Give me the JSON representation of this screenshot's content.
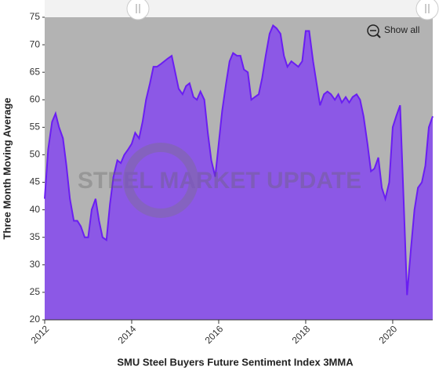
{
  "chart_data": {
    "type": "area",
    "title": "SMU Steel Buyers Future Sentiment Index 3MMA",
    "y_label": "Three Month Moving Average",
    "watermark": "STEEL MARKET UPDATE",
    "button": "Show all",
    "x": [
      2012.0,
      2012.08,
      2012.17,
      2012.25,
      2012.33,
      2012.42,
      2012.5,
      2012.58,
      2012.67,
      2012.75,
      2012.83,
      2012.92,
      2013.0,
      2013.08,
      2013.17,
      2013.25,
      2013.33,
      2013.42,
      2013.5,
      2013.58,
      2013.67,
      2013.75,
      2013.83,
      2013.92,
      2014.0,
      2014.08,
      2014.17,
      2014.25,
      2014.33,
      2014.42,
      2014.5,
      2014.58,
      2014.67,
      2014.75,
      2014.83,
      2014.92,
      2015.0,
      2015.08,
      2015.17,
      2015.25,
      2015.33,
      2015.42,
      2015.5,
      2015.58,
      2015.67,
      2015.75,
      2015.83,
      2015.92,
      2016.0,
      2016.08,
      2016.17,
      2016.25,
      2016.33,
      2016.42,
      2016.5,
      2016.58,
      2016.67,
      2016.75,
      2016.83,
      2016.92,
      2017.0,
      2017.08,
      2017.17,
      2017.25,
      2017.33,
      2017.42,
      2017.5,
      2017.58,
      2017.67,
      2017.75,
      2017.83,
      2017.92,
      2018.0,
      2018.08,
      2018.17,
      2018.25,
      2018.33,
      2018.42,
      2018.5,
      2018.58,
      2018.67,
      2018.75,
      2018.83,
      2018.92,
      2019.0,
      2019.08,
      2019.17,
      2019.25,
      2019.33,
      2019.42,
      2019.5,
      2019.58,
      2019.67,
      2019.75,
      2019.83,
      2019.92,
      2020.0,
      2020.08,
      2020.17,
      2020.25,
      2020.33,
      2020.42,
      2020.5,
      2020.58,
      2020.67,
      2020.75,
      2020.83,
      2020.92
    ],
    "series": [
      {
        "name": "SMU Steel Buyers Future Sentiment Index 3MMA",
        "color": "#8c58e6",
        "line_color": "#6a1ef2",
        "values": [
          42,
          51,
          56,
          57.5,
          55,
          53,
          48,
          42,
          38,
          38,
          37,
          35,
          35,
          40,
          42,
          38,
          35,
          34.5,
          41,
          46,
          49,
          48.5,
          50,
          51,
          52,
          54,
          53,
          56,
          60,
          63,
          66,
          66,
          66.5,
          67,
          67.5,
          68,
          65,
          62,
          61,
          62.5,
          63,
          60.5,
          60,
          61.5,
          60,
          54,
          49,
          46,
          52,
          58,
          63,
          67,
          68.5,
          68,
          68,
          65.5,
          65,
          60,
          60.5,
          61,
          64,
          68,
          72,
          73.5,
          73,
          72,
          68,
          66,
          67,
          66.5,
          66,
          67,
          72.5,
          72.5,
          67,
          63,
          59,
          61,
          61.5,
          61,
          60,
          61,
          59.5,
          60.5,
          59.5,
          60.5,
          61,
          60,
          57,
          52,
          47,
          47.5,
          49.5,
          44,
          42,
          45,
          55,
          57,
          59,
          42,
          24.5,
          33,
          40,
          44,
          45,
          48,
          55,
          57
        ]
      }
    ],
    "xlim": [
      2012,
      2020.92
    ],
    "xticks": [
      2012,
      2014,
      2016,
      2018,
      2020
    ],
    "ylim": [
      20,
      75
    ],
    "yticks": [
      20,
      25,
      30,
      35,
      40,
      45,
      50,
      55,
      60,
      65,
      70,
      75
    ],
    "background": "#b3b3b3"
  }
}
